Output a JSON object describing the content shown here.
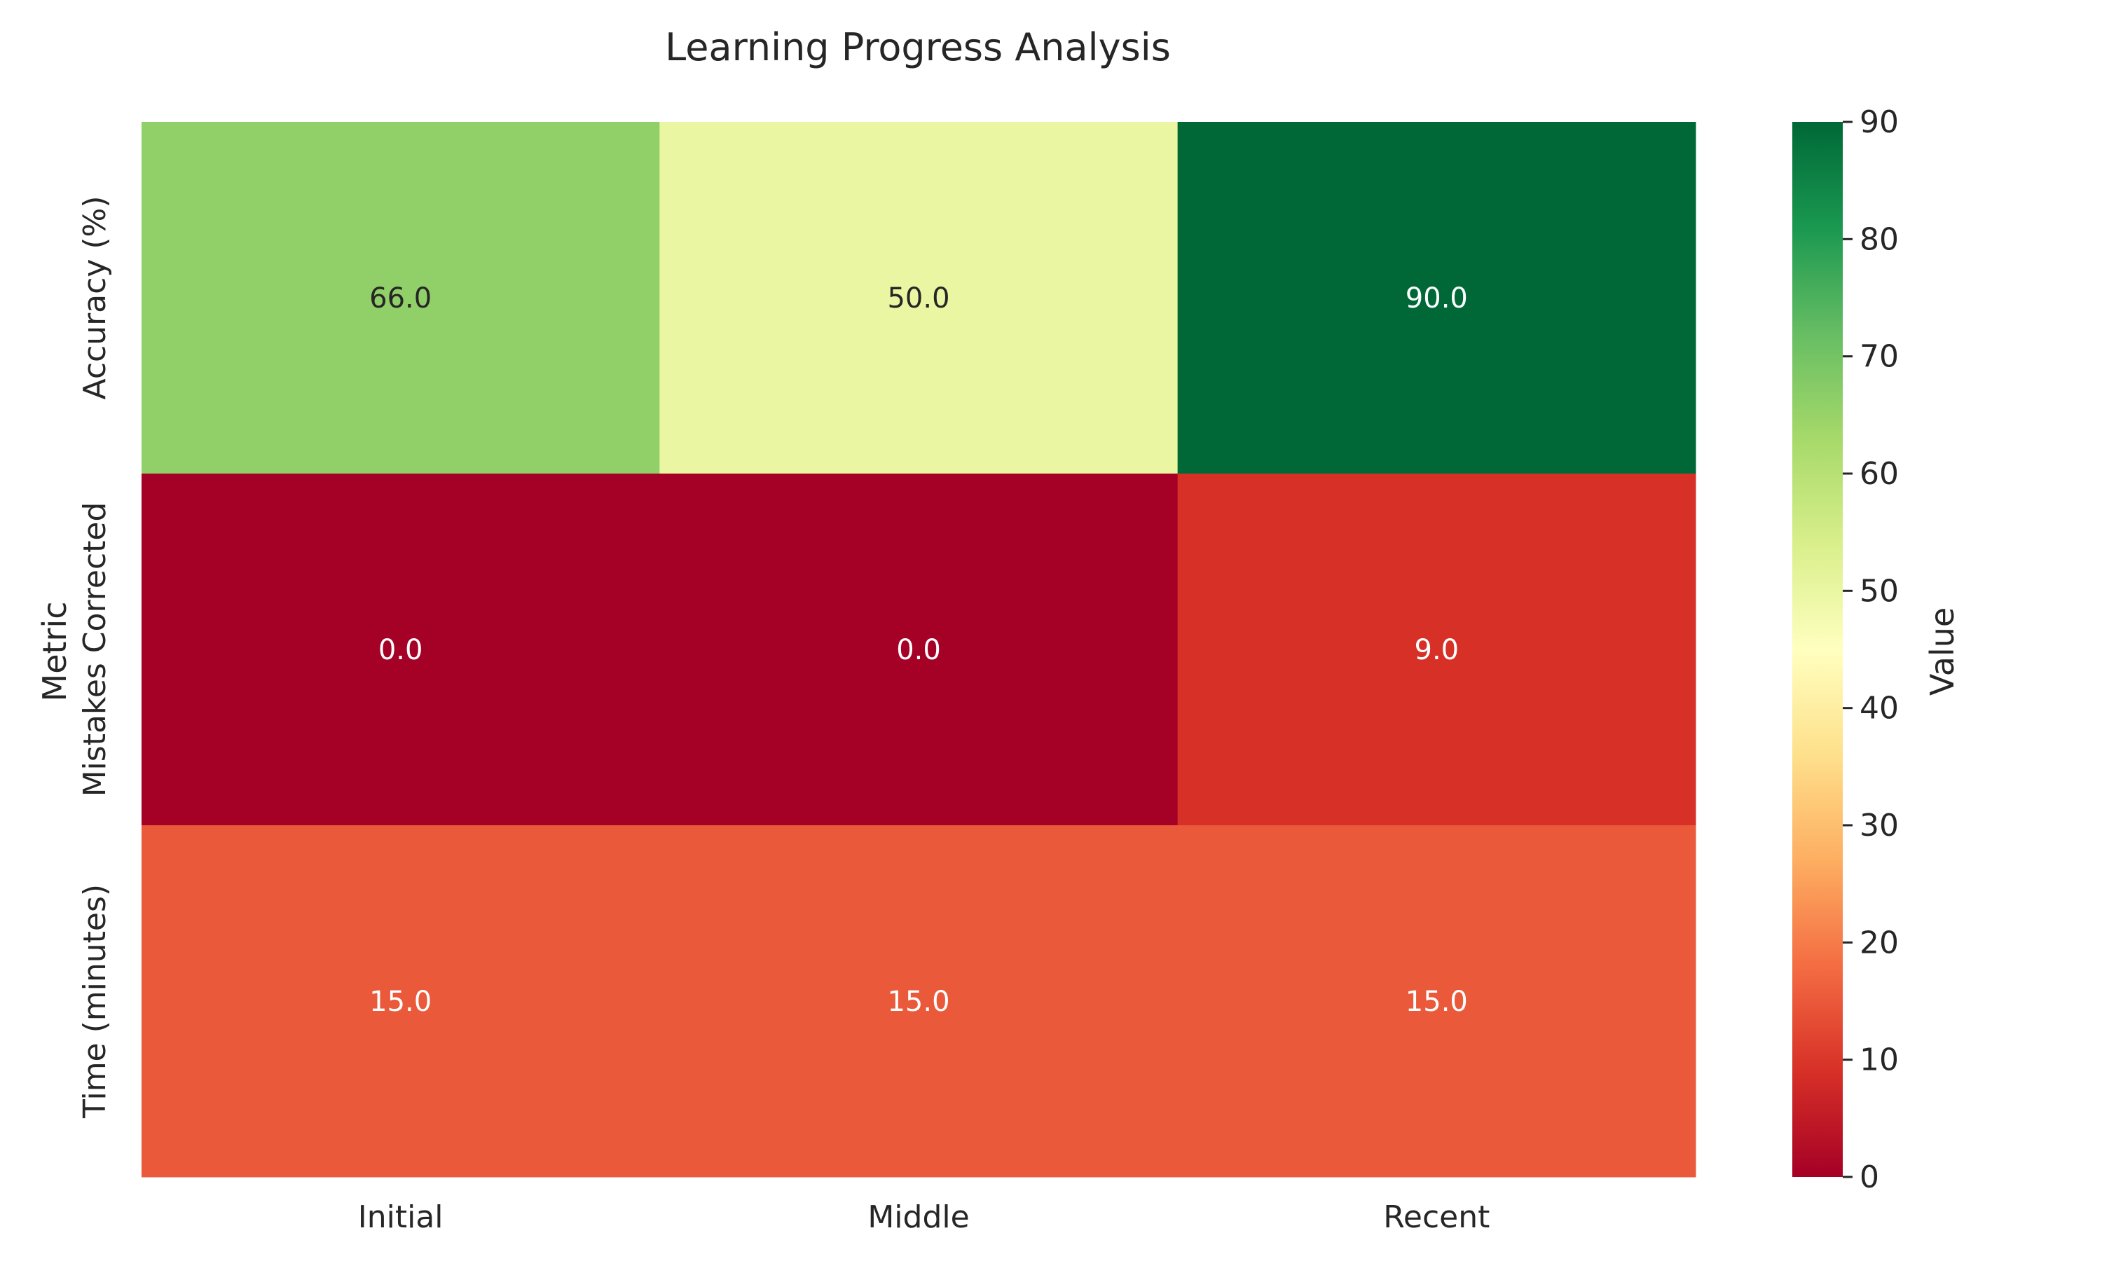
{
  "chart_data": {
    "type": "heatmap",
    "title": "Learning Progress Analysis",
    "xlabel": "",
    "ylabel": "Metric",
    "x_categories": [
      "Initial",
      "Middle",
      "Recent"
    ],
    "y_categories": [
      "Accuracy (%)",
      "Mistakes Corrected",
      "Time (minutes)"
    ],
    "values": [
      [
        66.0,
        50.0,
        90.0
      ],
      [
        0.0,
        0.0,
        9.0
      ],
      [
        15.0,
        15.0,
        15.0
      ]
    ],
    "value_labels": [
      [
        "66.0",
        "50.0",
        "90.0"
      ],
      [
        "0.0",
        "0.0",
        "9.0"
      ],
      [
        "15.0",
        "15.0",
        "15.0"
      ]
    ],
    "colorbar": {
      "label": "Value",
      "range": [
        0,
        90
      ],
      "ticks": [
        0,
        10,
        20,
        30,
        40,
        50,
        60,
        70,
        80,
        90
      ],
      "tick_labels": [
        "0",
        "10",
        "20",
        "30",
        "40",
        "50",
        "60",
        "70",
        "80",
        "90"
      ],
      "colormap": "RdYlGn",
      "colormap_stops": [
        "#a50026",
        "#d73027",
        "#f46d43",
        "#fdae61",
        "#fee08b",
        "#ffffbf",
        "#d9ef8b",
        "#a6d96a",
        "#66bd63",
        "#1a9850",
        "#006837"
      ]
    },
    "legend": "none",
    "grid": false
  }
}
